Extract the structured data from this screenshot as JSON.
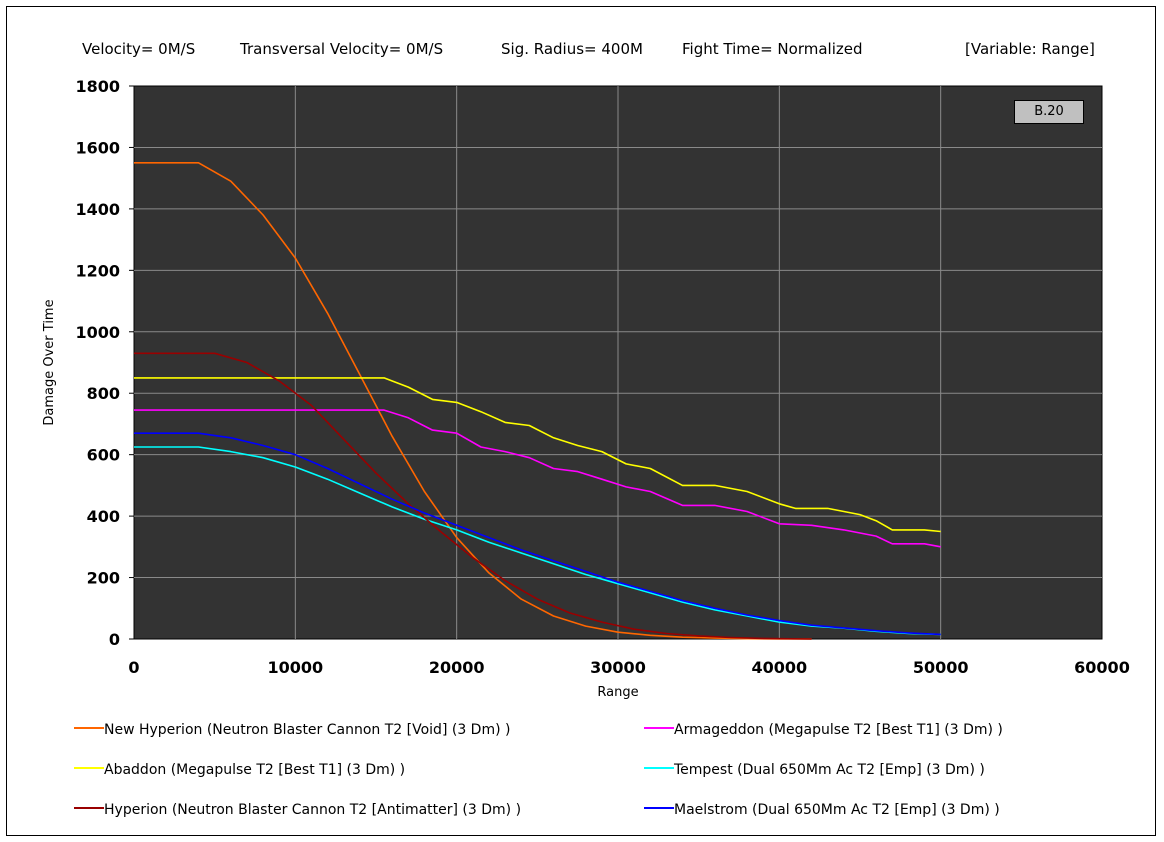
{
  "header": {
    "velocity": "Velocity= 0M/S",
    "transversal": "Transversal Velocity= 0M/S",
    "sig_radius": "Sig. Radius= 400M",
    "fight_time": "Fight Time= Normalized",
    "variable": "[Variable: Range]"
  },
  "badge": "B.20",
  "chart_data": {
    "type": "line",
    "xlabel": "Range",
    "ylabel": "Damage Over Time",
    "xlim": [
      0,
      60000
    ],
    "ylim": [
      0,
      1800
    ],
    "x_ticks": [
      "0",
      "10000",
      "20000",
      "30000",
      "40000",
      "50000",
      "60000"
    ],
    "y_ticks": [
      "0",
      "200",
      "400",
      "600",
      "800",
      "1000",
      "1200",
      "1400",
      "1600",
      "1800"
    ],
    "grid": true,
    "background": "#333333",
    "legend_position": "bottom",
    "series": [
      {
        "name": "New Hyperion (Neutron Blaster Cannon T2 [Void] (3 Dm) )",
        "color": "#ff6600",
        "points": [
          [
            0,
            1550
          ],
          [
            4000,
            1550
          ],
          [
            6000,
            1490
          ],
          [
            8000,
            1380
          ],
          [
            10000,
            1240
          ],
          [
            12000,
            1060
          ],
          [
            14000,
            860
          ],
          [
            16000,
            660
          ],
          [
            18000,
            480
          ],
          [
            20000,
            330
          ],
          [
            22000,
            215
          ],
          [
            24000,
            130
          ],
          [
            26000,
            75
          ],
          [
            28000,
            42
          ],
          [
            30000,
            22
          ],
          [
            32000,
            12
          ],
          [
            34000,
            6
          ],
          [
            36000,
            3
          ],
          [
            38000,
            1
          ],
          [
            40000,
            0
          ],
          [
            42000,
            0
          ]
        ]
      },
      {
        "name": "Armageddon (Megapulse T2 [Best T1] (3 Dm) )",
        "color": "#ff00ff",
        "points": [
          [
            0,
            745
          ],
          [
            15500,
            745
          ],
          [
            17000,
            720
          ],
          [
            18500,
            680
          ],
          [
            20000,
            670
          ],
          [
            21500,
            625
          ],
          [
            23000,
            610
          ],
          [
            24500,
            590
          ],
          [
            26000,
            555
          ],
          [
            27500,
            545
          ],
          [
            29000,
            520
          ],
          [
            30500,
            495
          ],
          [
            32000,
            480
          ],
          [
            34000,
            435
          ],
          [
            36000,
            435
          ],
          [
            38000,
            415
          ],
          [
            40000,
            375
          ],
          [
            42000,
            370
          ],
          [
            44000,
            355
          ],
          [
            46000,
            335
          ],
          [
            47000,
            310
          ],
          [
            49000,
            310
          ],
          [
            50000,
            300
          ]
        ]
      },
      {
        "name": "Abaddon (Megapulse T2 [Best T1] (3 Dm) )",
        "color": "#ffff00",
        "points": [
          [
            0,
            850
          ],
          [
            15500,
            850
          ],
          [
            17000,
            820
          ],
          [
            18500,
            780
          ],
          [
            20000,
            770
          ],
          [
            21500,
            740
          ],
          [
            23000,
            705
          ],
          [
            24500,
            695
          ],
          [
            26000,
            655
          ],
          [
            27500,
            630
          ],
          [
            29000,
            610
          ],
          [
            30500,
            570
          ],
          [
            32000,
            555
          ],
          [
            34000,
            500
          ],
          [
            36000,
            500
          ],
          [
            38000,
            480
          ],
          [
            40000,
            440
          ],
          [
            41000,
            425
          ],
          [
            43000,
            425
          ],
          [
            45000,
            405
          ],
          [
            46000,
            385
          ],
          [
            47000,
            355
          ],
          [
            49000,
            355
          ],
          [
            50000,
            350
          ]
        ]
      },
      {
        "name": "Tempest (Dual 650Mm Ac T2 [Emp] (3 Dm) )",
        "color": "#00ffff",
        "points": [
          [
            0,
            625
          ],
          [
            4000,
            625
          ],
          [
            6000,
            610
          ],
          [
            8000,
            590
          ],
          [
            10000,
            560
          ],
          [
            12000,
            520
          ],
          [
            14000,
            475
          ],
          [
            16000,
            430
          ],
          [
            18000,
            390
          ],
          [
            20000,
            355
          ],
          [
            22000,
            315
          ],
          [
            24000,
            280
          ],
          [
            26000,
            245
          ],
          [
            28000,
            210
          ],
          [
            30000,
            180
          ],
          [
            32000,
            150
          ],
          [
            34000,
            120
          ],
          [
            36000,
            95
          ],
          [
            38000,
            75
          ],
          [
            40000,
            55
          ],
          [
            42000,
            42
          ],
          [
            44000,
            35
          ],
          [
            46000,
            25
          ],
          [
            48000,
            18
          ],
          [
            50000,
            15
          ]
        ]
      },
      {
        "name": "Hyperion (Neutron Blaster Cannon T2 [Antimatter] (3 Dm) )",
        "color": "#990000",
        "points": [
          [
            0,
            930
          ],
          [
            5000,
            930
          ],
          [
            7000,
            900
          ],
          [
            9000,
            840
          ],
          [
            11000,
            760
          ],
          [
            13000,
            650
          ],
          [
            15000,
            540
          ],
          [
            17000,
            440
          ],
          [
            19000,
            350
          ],
          [
            21000,
            265
          ],
          [
            23000,
            190
          ],
          [
            25000,
            130
          ],
          [
            27000,
            85
          ],
          [
            29000,
            55
          ],
          [
            31000,
            32
          ],
          [
            33000,
            18
          ],
          [
            35000,
            10
          ],
          [
            37000,
            5
          ],
          [
            39000,
            2
          ],
          [
            42000,
            0
          ]
        ]
      },
      {
        "name": "Maelstrom (Dual 650Mm Ac T2 [Emp] (3 Dm) )",
        "color": "#0000ff",
        "points": [
          [
            0,
            670
          ],
          [
            4000,
            670
          ],
          [
            6000,
            655
          ],
          [
            8000,
            630
          ],
          [
            10000,
            600
          ],
          [
            12000,
            555
          ],
          [
            14000,
            505
          ],
          [
            16000,
            455
          ],
          [
            18000,
            410
          ],
          [
            20000,
            370
          ],
          [
            22000,
            330
          ],
          [
            24000,
            290
          ],
          [
            26000,
            255
          ],
          [
            28000,
            220
          ],
          [
            30000,
            185
          ],
          [
            32000,
            155
          ],
          [
            34000,
            125
          ],
          [
            36000,
            100
          ],
          [
            38000,
            78
          ],
          [
            40000,
            60
          ],
          [
            42000,
            45
          ],
          [
            44000,
            36
          ],
          [
            46000,
            27
          ],
          [
            48000,
            20
          ],
          [
            50000,
            15
          ]
        ]
      }
    ]
  }
}
